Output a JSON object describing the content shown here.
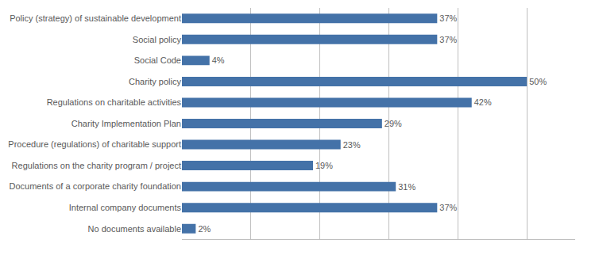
{
  "chart_data": {
    "type": "bar",
    "orientation": "horizontal",
    "categories": [
      "No documents available",
      "Internal company documents",
      "Documents of a corporate charity foundation",
      "Regulations on the charity program / project",
      "Procedure (regulations) of charitable support",
      "Charity Implementation Plan",
      "Regulations on charitable activities",
      "Charity policy",
      "Social Code",
      "Social policy",
      "Policy (strategy) of sustainable development"
    ],
    "values": [
      2,
      37,
      31,
      19,
      23,
      29,
      42,
      50,
      4,
      37,
      37
    ],
    "value_labels": [
      "2%",
      "37%",
      "31%",
      "19%",
      "23%",
      "29%",
      "42%",
      "50%",
      "4%",
      "37%",
      "37%"
    ],
    "color": "#4472a8",
    "xlim": [
      0,
      57
    ],
    "xticks": [
      0,
      10,
      20,
      30,
      40,
      50
    ],
    "grid": true,
    "data_labels": true,
    "tick_labels": "y"
  }
}
